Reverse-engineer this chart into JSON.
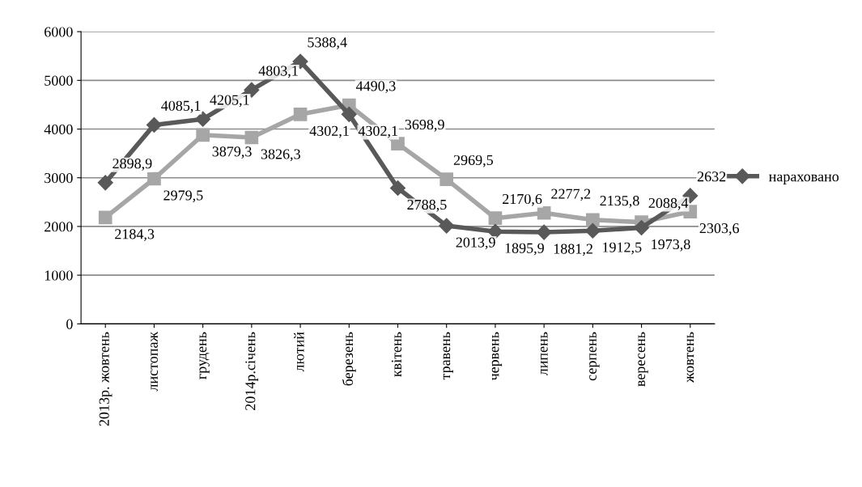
{
  "chart_data": {
    "type": "line",
    "categories": [
      "2013р. жовтень",
      "листопаж",
      "грудень",
      "2014р.січень",
      "лютий",
      "березень",
      "квітень",
      "травень",
      "червень",
      "липень",
      "серпень",
      "вересень",
      "жовтень"
    ],
    "series": [
      {
        "name": "нараховано",
        "color": "#595959",
        "marker": "diamond",
        "values": [
          2898.9,
          4085.1,
          4205.1,
          4803.1,
          5388.4,
          4302.1,
          2788.5,
          2013.9,
          1895.9,
          1881.2,
          1912.5,
          1973.8,
          2632
        ],
        "value_labels": [
          "2898,9",
          "4085,1",
          "4205,1",
          "4803,1",
          "5388,4",
          "4302,1",
          "2788,5",
          "2013,9",
          "1895,9",
          "1881,2",
          "1912,5",
          "1973,8",
          "2632"
        ]
      },
      {
        "color": "#a6a6a6",
        "marker": "square",
        "values": [
          2184.3,
          2979.5,
          3879.3,
          3826.3,
          4302.1,
          4490.3,
          3698.9,
          2969.5,
          2170.6,
          2277.2,
          2135.8,
          2088.4,
          2303.6
        ],
        "value_labels": [
          "2184,3",
          "2979,5",
          "3879,3",
          "3826,3",
          "4302,1",
          "4490,3",
          "3698,9",
          "2969,5",
          "2170,6",
          "2277,2",
          "2135,8",
          "2088,4",
          "2303,6"
        ]
      }
    ],
    "ylim": [
      0,
      6000
    ],
    "yticks": [
      0,
      1000,
      2000,
      3000,
      4000,
      5000,
      6000
    ],
    "grid": "y",
    "legend": "right",
    "line_style": "solid"
  }
}
